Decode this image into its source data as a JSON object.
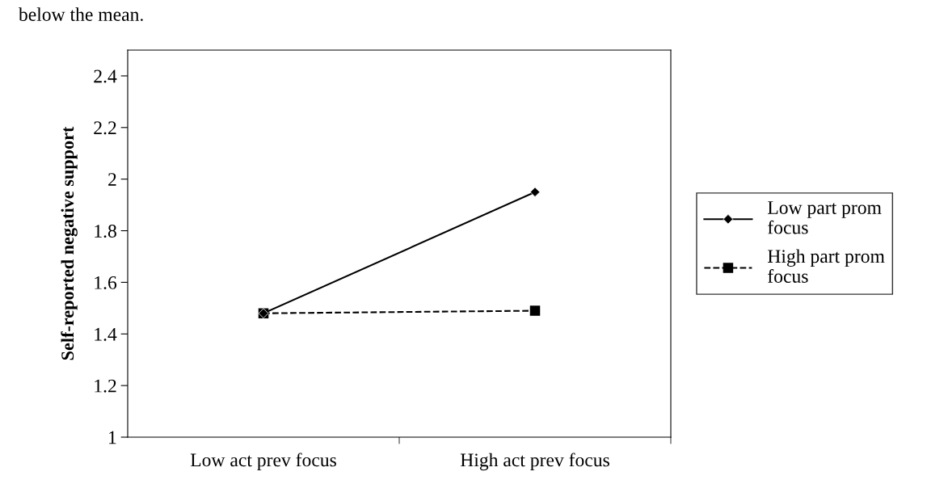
{
  "chart_data": {
    "type": "line",
    "ylabel": "Self-reported negative support",
    "categories": [
      "Low act prev focus",
      "High act prev focus"
    ],
    "series": [
      {
        "name": "Low part prom focus",
        "color": "#000000",
        "values": [
          1.48,
          1.95
        ],
        "marker": "diamond",
        "line_style": "solid"
      },
      {
        "name": "High part prom focus",
        "color": "#000000",
        "values": [
          1.48,
          1.49
        ],
        "marker": "square",
        "line_style": "dashed"
      }
    ],
    "ylim": [
      1,
      2.5
    ],
    "yticks": [
      1,
      1.2,
      1.4,
      1.6,
      1.8,
      2,
      2.2,
      2.4
    ],
    "grid": false,
    "legend": "right",
    "annotations": [
      "below the mean."
    ]
  }
}
